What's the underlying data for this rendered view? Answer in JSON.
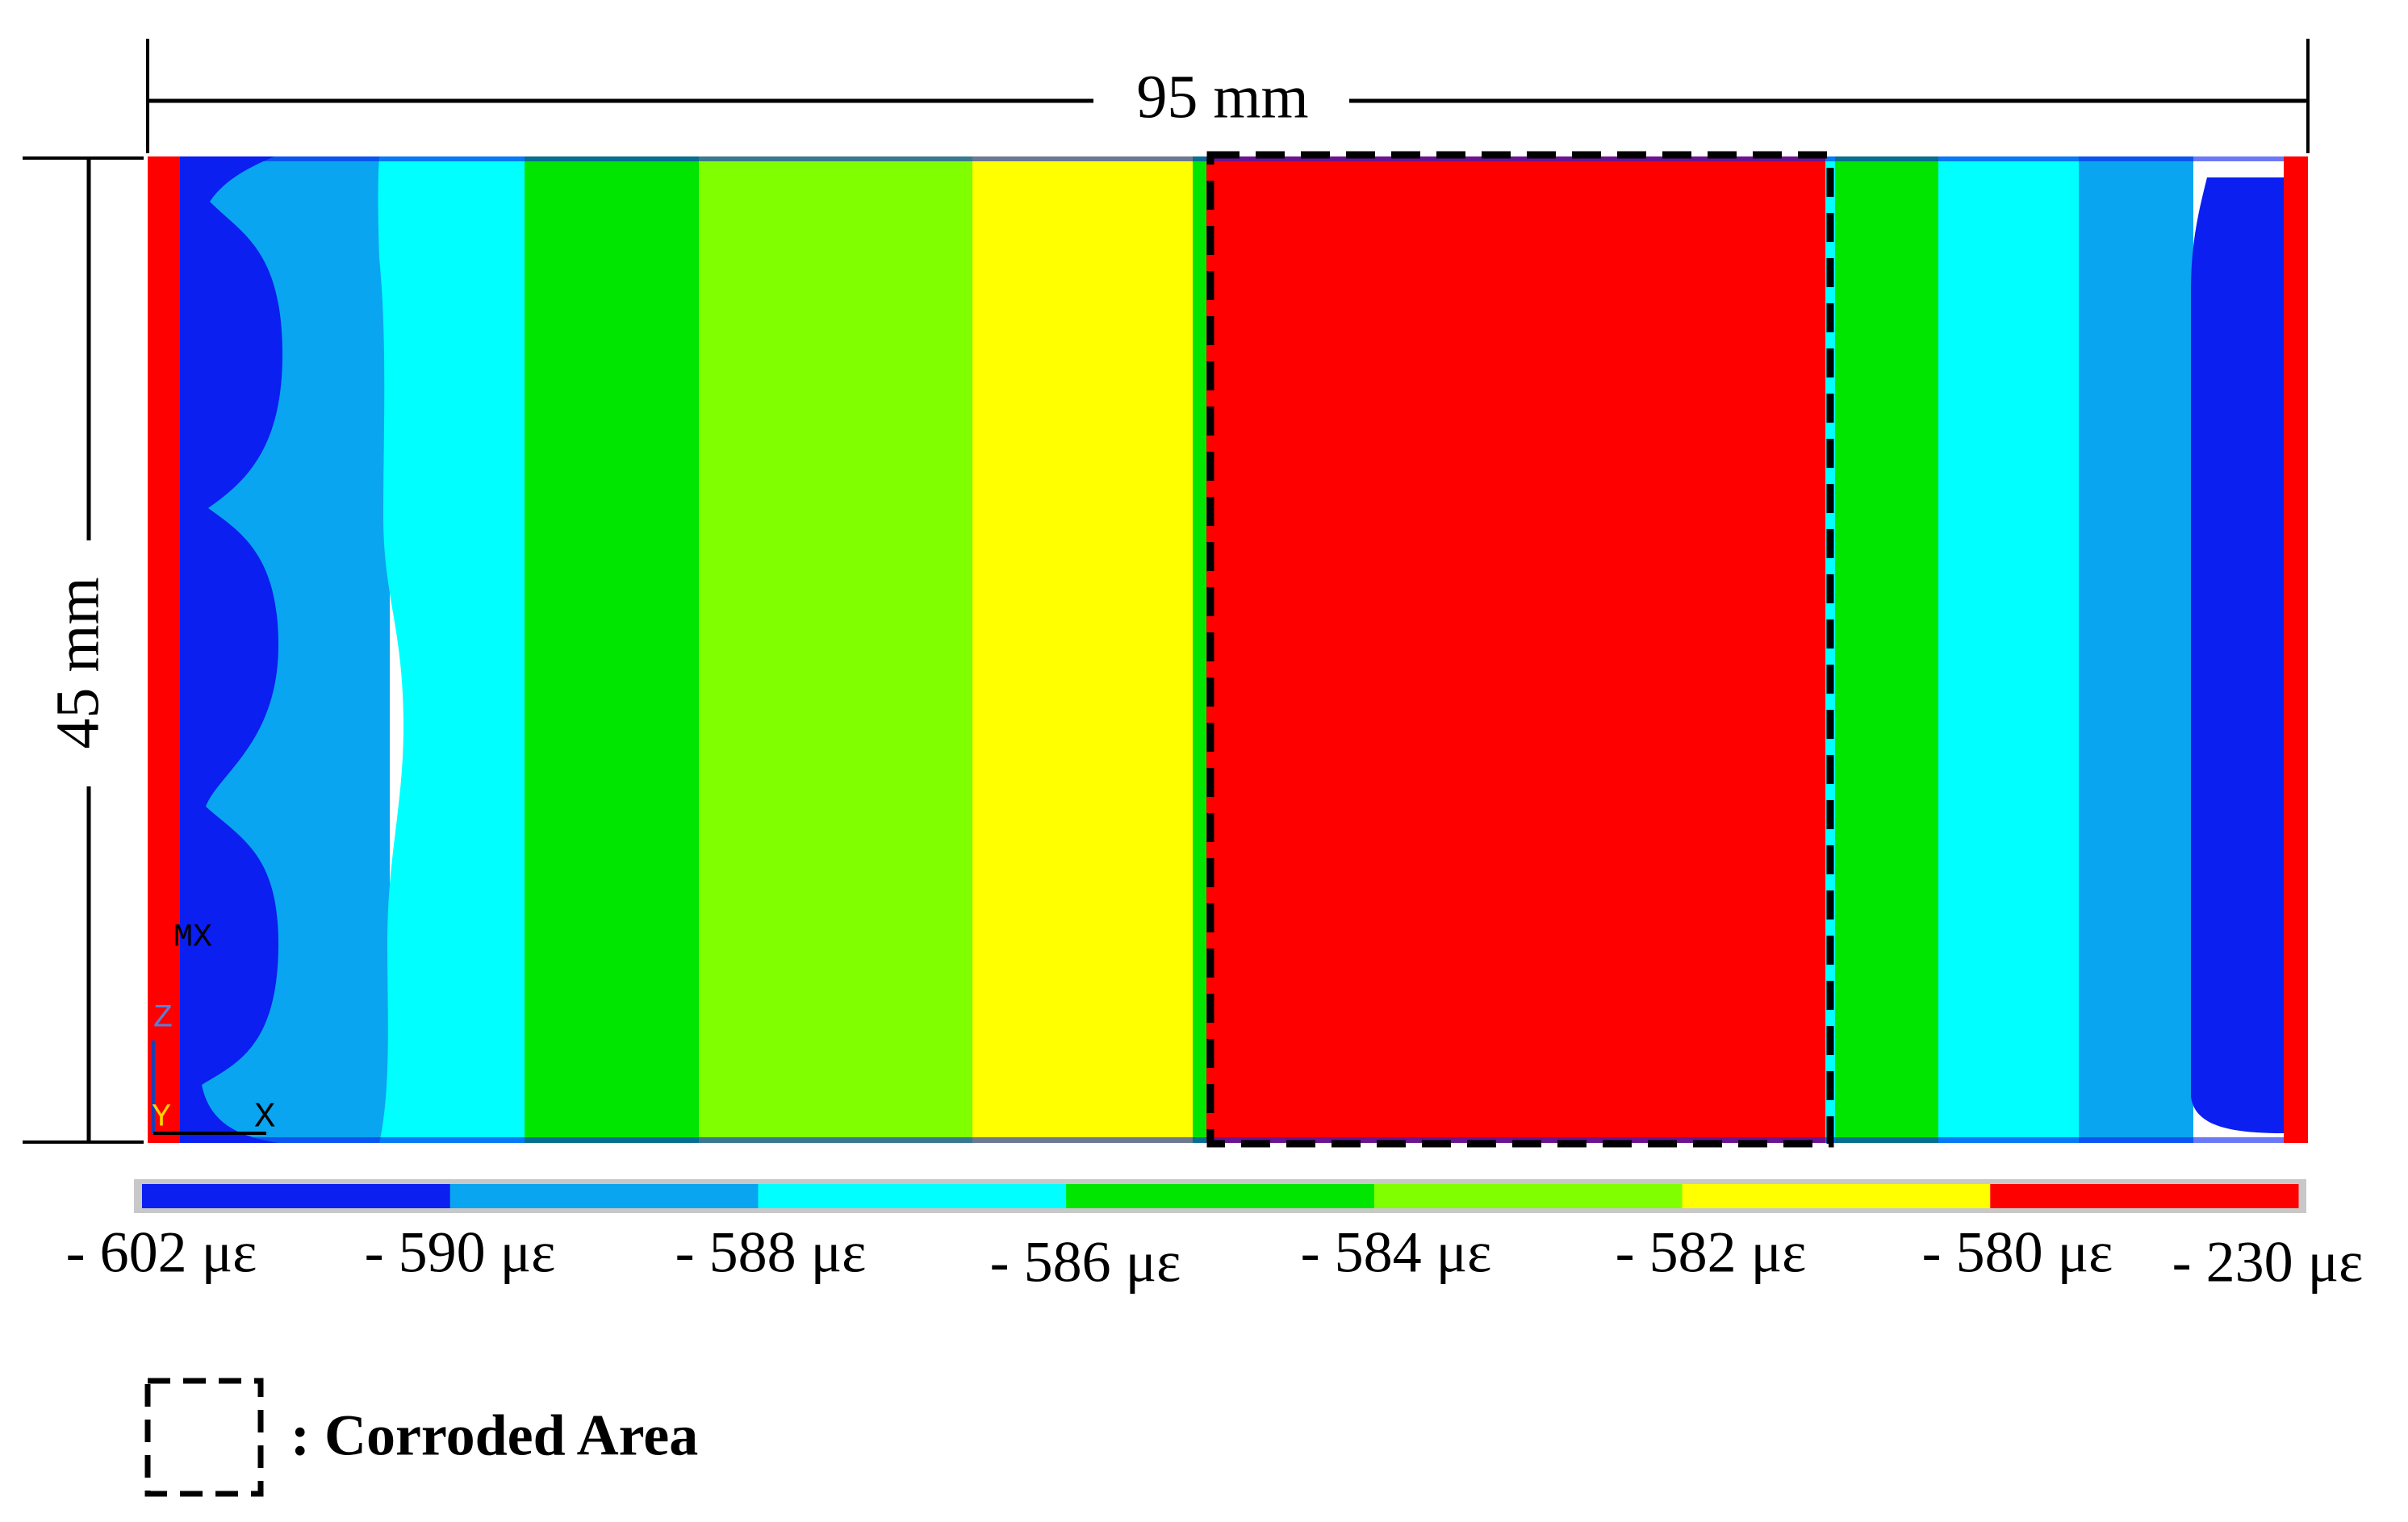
{
  "dimensions": {
    "width_label": "95 mm",
    "height_label": "45 mm"
  },
  "triad": {
    "mx_label": "MX",
    "z_label": "Z",
    "y_label": "Y",
    "x_label": "X"
  },
  "contour": {
    "colors": {
      "blue": "#0a1ff0",
      "light_blue": "#0aa5f0",
      "cyan": "#00ffff",
      "green": "#00e600",
      "yellow_green": "#80ff00",
      "yellow": "#ffff00",
      "red": "#ff0000"
    }
  },
  "legend": {
    "bands": [
      {
        "color": "#0a1ff0"
      },
      {
        "color": "#0aa5f0"
      },
      {
        "color": "#00ffff"
      },
      {
        "color": "#00e600"
      },
      {
        "color": "#80ff00"
      },
      {
        "color": "#ffff00"
      },
      {
        "color": "#ff0000"
      }
    ],
    "labels": [
      "- 602 με",
      "- 590 με",
      "- 588 με",
      "- 586 με",
      "- 584 με",
      "- 582 με",
      "- 580 με",
      "- 230 με"
    ]
  },
  "key": {
    "label": ": Corroded Area"
  }
}
